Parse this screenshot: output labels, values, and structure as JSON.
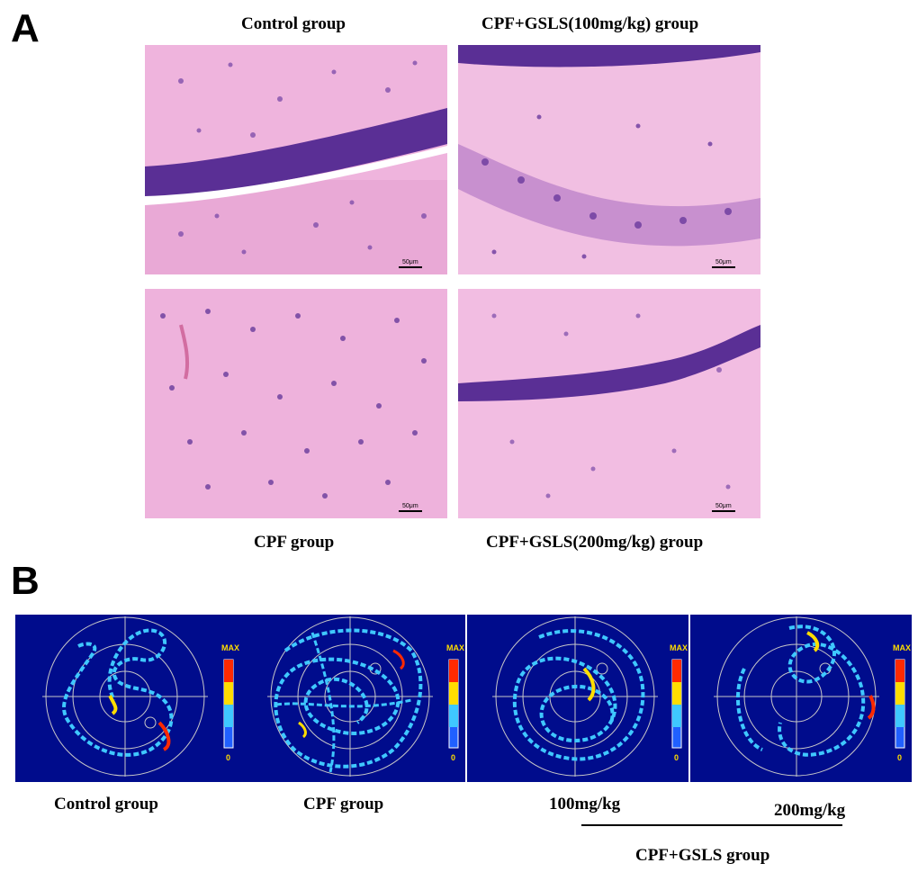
{
  "panel_a": {
    "letter": "A",
    "captions": {
      "control": "Control group",
      "gsls100": "CPF+GSLS(100mg/kg) group",
      "cpf": "CPF group",
      "gsls200": "CPF+GSLS(200mg/kg) group"
    },
    "scale_bar_label": "50μm"
  },
  "panel_b": {
    "letter": "B",
    "colorbar_max": "MAX",
    "colorbar_min": "0",
    "labels": {
      "control": "Control group",
      "cpf": "CPF group",
      "dose100": "100mg/kg",
      "dose200": "200mg/kg",
      "gsls_group": "CPF+GSLS group"
    },
    "colors": {
      "background": "#000c8c",
      "path_base": "#3fc8ff",
      "path_hot": "#ff2a00",
      "tissue": "#efb4dd",
      "nuclei": "#4a2a8e"
    }
  }
}
